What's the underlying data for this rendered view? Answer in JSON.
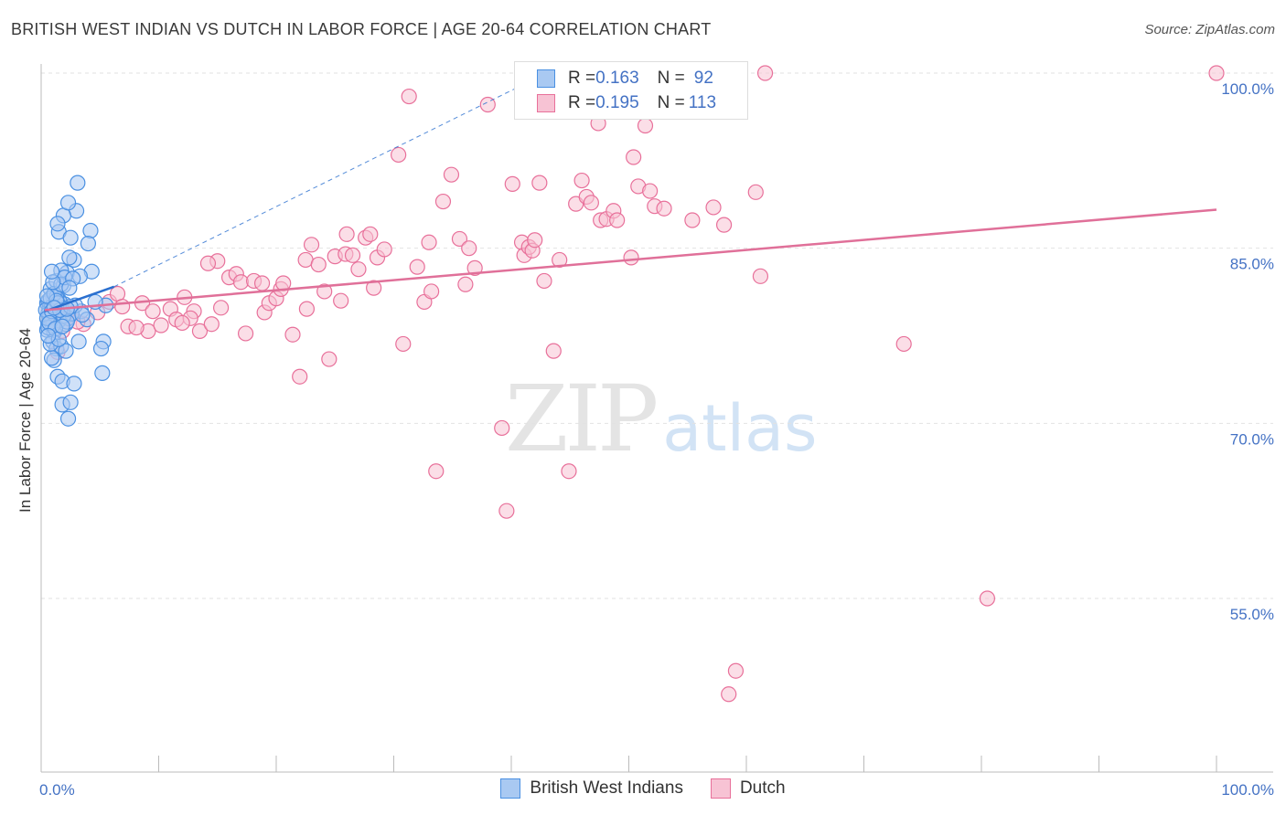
{
  "title": "BRITISH WEST INDIAN VS DUTCH IN LABOR FORCE | AGE 20-64 CORRELATION CHART",
  "source": "Source: ZipAtlas.com",
  "watermark": {
    "zip": "ZIP",
    "atlas": "atlas"
  },
  "colors": {
    "blue": "#4a90e2",
    "blue_line": "#2a6fcf",
    "blue_fill": "#a9c9f2",
    "pink": "#e8709a",
    "pink_line": "#e07099",
    "pink_fill": "#f7c3d4",
    "tick_text": "#4472c4",
    "grid": "#e2e2e2"
  },
  "legend_top": [
    {
      "r_label": "R = ",
      "r_value": "0.163",
      "n_label": "N = ",
      "n_value": "92"
    },
    {
      "r_label": "R = ",
      "r_value": "0.195",
      "n_label": "N = ",
      "n_value": "113"
    }
  ],
  "legend_bottom": [
    "British West Indians",
    "Dutch"
  ],
  "chart_data": {
    "type": "scatter",
    "title": "BRITISH WEST INDIAN VS DUTCH IN LABOR FORCE | AGE 20-64 CORRELATION CHART",
    "xlabel": "",
    "ylabel": "In Labor Force | Age 20-64",
    "xlim": [
      0,
      100
    ],
    "ylim": [
      40,
      102.5
    ],
    "x_tick_labels": [
      {
        "value": 0,
        "label": "0.0%"
      },
      {
        "value": 100,
        "label": "100.0%"
      }
    ],
    "y_ticks": [
      {
        "value": 55,
        "label": "55.0%"
      },
      {
        "value": 70,
        "label": "70.0%"
      },
      {
        "value": 85,
        "label": "85.0%"
      },
      {
        "value": 100,
        "label": "100.0%"
      }
    ],
    "x_minor_ticks": [
      10,
      20,
      30,
      40,
      50,
      60,
      70,
      80,
      90,
      100
    ],
    "series": [
      {
        "name": "British West Indians",
        "R": 0.163,
        "N": 92,
        "trend": {
          "x": [
            0.3,
            6.2
          ],
          "y": [
            79.6,
            81.7
          ]
        },
        "trend_extension": {
          "x": [
            6.2,
            44
          ],
          "y": [
            81.7,
            100.5
          ]
        },
        "points": [
          [
            0.5,
            80.3
          ],
          [
            0.8,
            79.2
          ],
          [
            0.6,
            78.5
          ],
          [
            1.0,
            80.9
          ],
          [
            0.7,
            79.8
          ],
          [
            1.2,
            80.1
          ],
          [
            0.9,
            78.9
          ],
          [
            1.4,
            79.6
          ],
          [
            0.5,
            78.0
          ],
          [
            1.1,
            77.8
          ],
          [
            0.8,
            81.5
          ],
          [
            1.5,
            80.6
          ],
          [
            0.6,
            79.4
          ],
          [
            1.3,
            82.2
          ],
          [
            1.9,
            81.8
          ],
          [
            2.2,
            82.9
          ],
          [
            2.8,
            84.0
          ],
          [
            1.7,
            83.1
          ],
          [
            2.4,
            84.2
          ],
          [
            1.5,
            86.4
          ],
          [
            2.5,
            85.9
          ],
          [
            3.0,
            88.2
          ],
          [
            1.9,
            87.8
          ],
          [
            1.4,
            87.1
          ],
          [
            2.3,
            88.9
          ],
          [
            3.1,
            90.6
          ],
          [
            4.2,
            86.5
          ],
          [
            4.0,
            85.4
          ],
          [
            4.3,
            83.0
          ],
          [
            3.3,
            82.6
          ],
          [
            1.0,
            77.0
          ],
          [
            1.3,
            76.4
          ],
          [
            1.7,
            76.6
          ],
          [
            2.1,
            76.2
          ],
          [
            3.2,
            77.0
          ],
          [
            1.1,
            75.4
          ],
          [
            0.9,
            75.6
          ],
          [
            1.4,
            74.0
          ],
          [
            1.8,
            73.6
          ],
          [
            2.8,
            73.4
          ],
          [
            1.8,
            71.6
          ],
          [
            2.5,
            71.8
          ],
          [
            2.3,
            70.4
          ],
          [
            5.3,
            77.0
          ],
          [
            5.1,
            76.4
          ],
          [
            5.2,
            74.3
          ],
          [
            5.5,
            80.1
          ],
          [
            3.4,
            79.6
          ],
          [
            3.9,
            78.9
          ],
          [
            2.1,
            78.5
          ],
          [
            0.6,
            80.5
          ],
          [
            0.9,
            80.0
          ],
          [
            1.2,
            79.3
          ],
          [
            1.5,
            78.8
          ],
          [
            1.8,
            79.9
          ],
          [
            2.0,
            80.2
          ],
          [
            2.3,
            79.0
          ],
          [
            0.7,
            79.1
          ],
          [
            1.0,
            78.4
          ],
          [
            1.6,
            80.4
          ],
          [
            2.6,
            79.4
          ],
          [
            2.9,
            80.1
          ],
          [
            0.8,
            80.7
          ],
          [
            1.3,
            80.8
          ],
          [
            0.4,
            79.7
          ],
          [
            0.6,
            78.2
          ],
          [
            1.1,
            81.1
          ],
          [
            1.7,
            81.9
          ],
          [
            2.0,
            82.5
          ],
          [
            2.7,
            82.4
          ],
          [
            0.5,
            79.0
          ],
          [
            0.9,
            79.6
          ],
          [
            1.4,
            80.3
          ],
          [
            1.9,
            79.2
          ],
          [
            2.2,
            78.7
          ],
          [
            0.7,
            78.6
          ],
          [
            1.2,
            78.1
          ],
          [
            1.6,
            79.7
          ],
          [
            2.5,
            80.0
          ],
          [
            3.5,
            79.3
          ],
          [
            4.6,
            80.4
          ],
          [
            0.8,
            76.8
          ],
          [
            1.5,
            77.2
          ],
          [
            0.6,
            77.5
          ],
          [
            1.0,
            82.1
          ],
          [
            2.4,
            81.6
          ],
          [
            0.9,
            83.0
          ],
          [
            1.3,
            80.5
          ],
          [
            0.5,
            80.9
          ],
          [
            1.8,
            78.3
          ],
          [
            2.2,
            79.8
          ],
          [
            1.1,
            79.9
          ]
        ]
      },
      {
        "name": "Dutch",
        "R": 0.195,
        "N": 113,
        "trend": {
          "x": [
            0.3,
            100
          ],
          "y": [
            79.7,
            88.3
          ]
        },
        "points": [
          [
            1.0,
            78.9
          ],
          [
            1.8,
            77.9
          ],
          [
            2.4,
            79.2
          ],
          [
            3.6,
            78.5
          ],
          [
            4.8,
            79.5
          ],
          [
            5.8,
            80.4
          ],
          [
            6.5,
            81.1
          ],
          [
            7.4,
            78.3
          ],
          [
            8.6,
            80.3
          ],
          [
            9.1,
            77.9
          ],
          [
            10.2,
            78.4
          ],
          [
            11.0,
            79.8
          ],
          [
            11.5,
            78.9
          ],
          [
            12.2,
            80.8
          ],
          [
            13.0,
            79.6
          ],
          [
            13.5,
            77.9
          ],
          [
            14.5,
            78.5
          ],
          [
            15.0,
            83.9
          ],
          [
            14.2,
            83.7
          ],
          [
            15.3,
            79.9
          ],
          [
            16.0,
            82.5
          ],
          [
            16.6,
            82.8
          ],
          [
            17.0,
            82.1
          ],
          [
            17.4,
            77.7
          ],
          [
            18.1,
            82.2
          ],
          [
            18.8,
            82.0
          ],
          [
            19.0,
            79.5
          ],
          [
            19.4,
            80.3
          ],
          [
            20.0,
            80.7
          ],
          [
            20.4,
            81.5
          ],
          [
            20.6,
            82.0
          ],
          [
            21.4,
            77.6
          ],
          [
            22.0,
            74.0
          ],
          [
            22.5,
            84.0
          ],
          [
            23.0,
            85.3
          ],
          [
            23.6,
            83.6
          ],
          [
            24.1,
            81.3
          ],
          [
            24.5,
            75.5
          ],
          [
            25.0,
            84.3
          ],
          [
            25.5,
            80.5
          ],
          [
            25.9,
            84.5
          ],
          [
            26.0,
            86.2
          ],
          [
            26.5,
            84.4
          ],
          [
            27.0,
            83.2
          ],
          [
            27.6,
            85.9
          ],
          [
            28.0,
            86.2
          ],
          [
            28.3,
            81.6
          ],
          [
            28.6,
            84.2
          ],
          [
            29.2,
            84.9
          ],
          [
            30.4,
            93.0
          ],
          [
            30.8,
            76.8
          ],
          [
            31.3,
            98.0
          ],
          [
            32.0,
            83.4
          ],
          [
            32.6,
            80.4
          ],
          [
            33.0,
            85.5
          ],
          [
            33.2,
            81.3
          ],
          [
            33.6,
            65.9
          ],
          [
            34.2,
            89.0
          ],
          [
            34.9,
            91.3
          ],
          [
            35.6,
            85.8
          ],
          [
            36.1,
            81.9
          ],
          [
            36.4,
            85.0
          ],
          [
            36.9,
            83.3
          ],
          [
            38.0,
            97.3
          ],
          [
            39.2,
            69.6
          ],
          [
            39.6,
            62.5
          ],
          [
            40.1,
            90.5
          ],
          [
            40.9,
            85.5
          ],
          [
            41.1,
            84.4
          ],
          [
            41.5,
            85.1
          ],
          [
            41.8,
            84.8
          ],
          [
            42.0,
            85.7
          ],
          [
            42.4,
            90.6
          ],
          [
            42.8,
            82.2
          ],
          [
            43.6,
            76.2
          ],
          [
            44.1,
            84.0
          ],
          [
            44.9,
            65.9
          ],
          [
            45.5,
            88.8
          ],
          [
            46.0,
            90.8
          ],
          [
            46.4,
            89.4
          ],
          [
            46.8,
            88.9
          ],
          [
            47.4,
            95.7
          ],
          [
            47.6,
            87.4
          ],
          [
            48.1,
            87.5
          ],
          [
            48.7,
            88.2
          ],
          [
            49.0,
            87.4
          ],
          [
            50.2,
            84.2
          ],
          [
            50.4,
            92.8
          ],
          [
            50.8,
            90.3
          ],
          [
            51.4,
            95.5
          ],
          [
            51.8,
            89.9
          ],
          [
            52.2,
            88.6
          ],
          [
            53.0,
            88.4
          ],
          [
            55.4,
            87.4
          ],
          [
            57.2,
            88.5
          ],
          [
            58.1,
            87.0
          ],
          [
            59.1,
            48.8
          ],
          [
            60.8,
            89.8
          ],
          [
            61.2,
            82.6
          ],
          [
            61.6,
            100.0
          ],
          [
            73.4,
            76.8
          ],
          [
            80.5,
            55.0
          ],
          [
            100.0,
            100.0
          ],
          [
            58.5,
            46.8
          ],
          [
            12.7,
            79.0
          ],
          [
            22.6,
            79.8
          ],
          [
            9.5,
            79.6
          ],
          [
            3.1,
            78.7
          ],
          [
            2.0,
            79.1
          ],
          [
            1.4,
            76.1
          ],
          [
            6.9,
            80.0
          ],
          [
            8.1,
            78.2
          ],
          [
            12.0,
            78.6
          ]
        ]
      }
    ],
    "grid": true,
    "legend": "top-center"
  }
}
